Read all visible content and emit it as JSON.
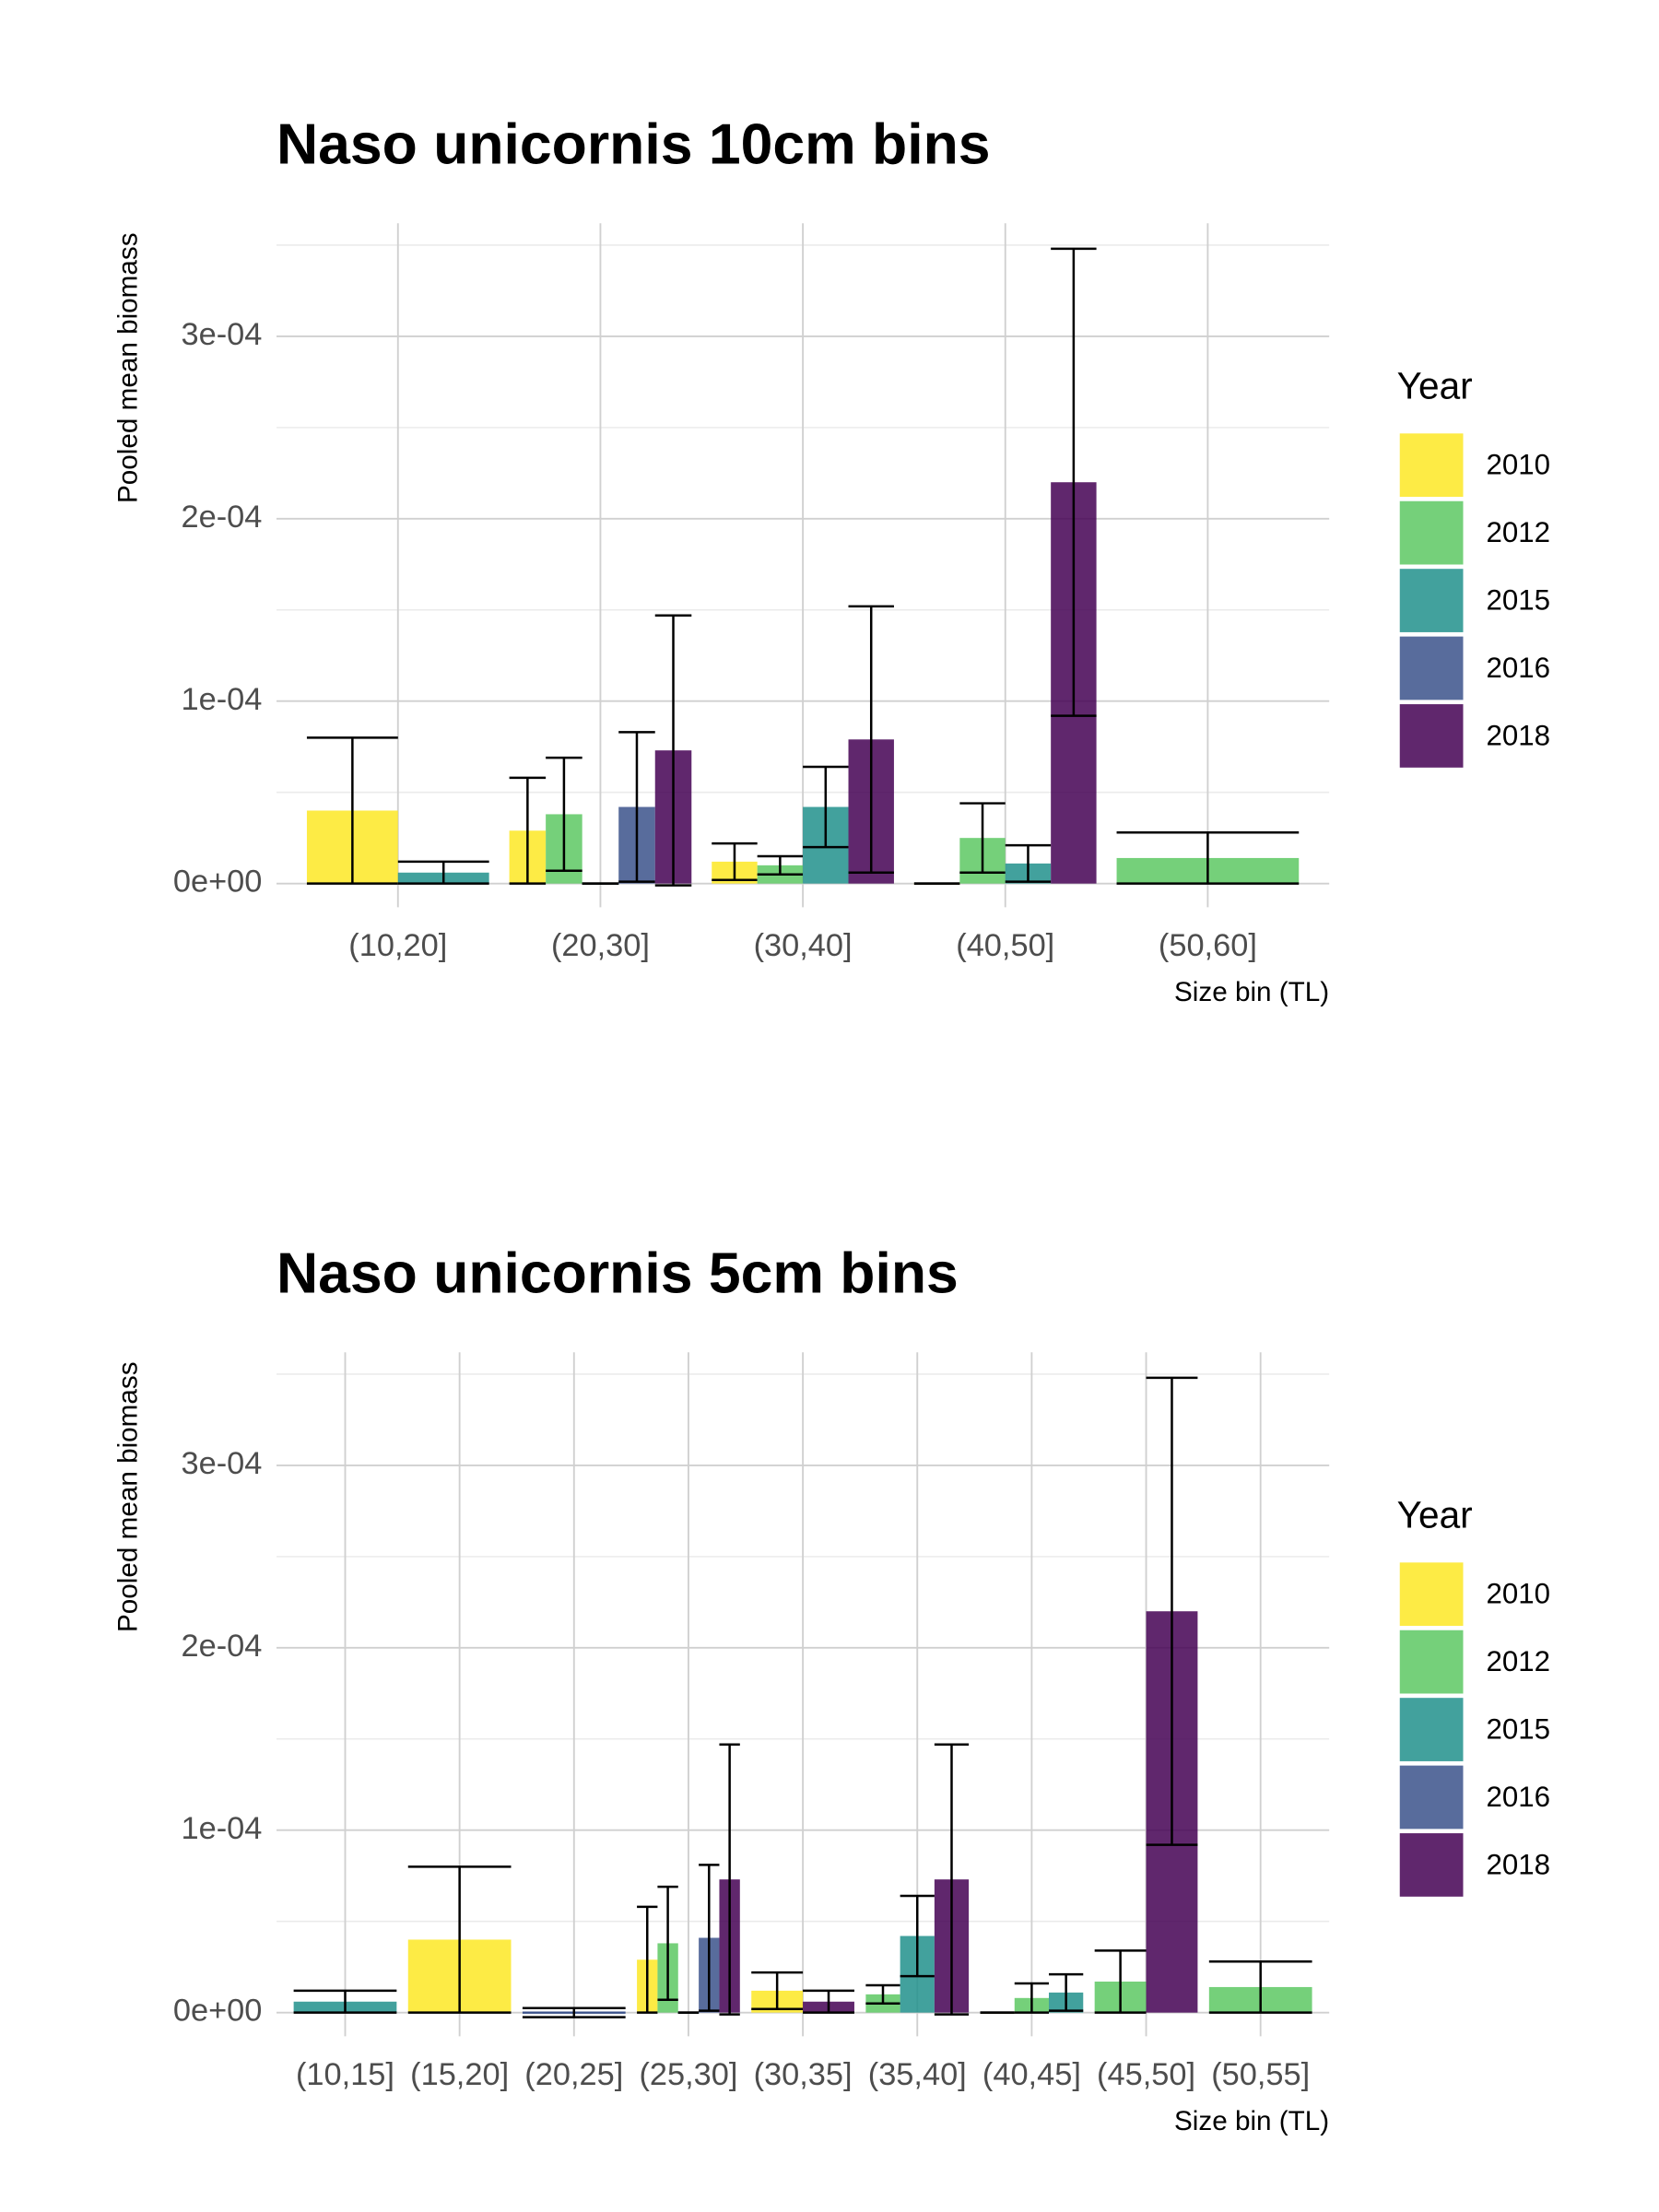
{
  "chart_data": [
    {
      "type": "bar",
      "title": "Naso unicornis 10cm bins",
      "x_label": "Size bin (TL)",
      "y_label": "Pooled mean biomass",
      "categories": [
        "(10,20]",
        "(20,30]",
        "(30,40]",
        "(40,50]",
        "(50,60]"
      ],
      "series": [
        {
          "name": "2010",
          "color": "#FDE725",
          "values": [
            4e-05,
            2.9e-05,
            1.2e-05,
            0,
            null
          ],
          "errors": [
            4e-05,
            2.9e-05,
            1e-05,
            0,
            null
          ]
        },
        {
          "name": "2012",
          "color": "#5DC863",
          "values": [
            null,
            3.8e-05,
            1e-05,
            2.5e-05,
            1.4e-05
          ],
          "errors": [
            null,
            3.1e-05,
            5e-06,
            1.9e-05,
            1.4e-05
          ]
        },
        {
          "name": "2015",
          "color": "#21908C",
          "values": [
            6e-06,
            0,
            4.2e-05,
            1.1e-05,
            null
          ],
          "errors": [
            6e-06,
            0,
            2.2e-05,
            1e-05,
            null
          ]
        },
        {
          "name": "2016",
          "color": "#3B528B",
          "values": [
            null,
            4.2e-05,
            null,
            null,
            null
          ],
          "errors": [
            null,
            4.1e-05,
            null,
            null,
            null
          ]
        },
        {
          "name": "2018",
          "color": "#440154",
          "values": [
            null,
            7.3e-05,
            7.9e-05,
            0.00022,
            null
          ],
          "errors": [
            null,
            7.4e-05,
            7.3e-05,
            0.000128,
            null
          ]
        }
      ],
      "ylim": [
        -1.3e-05,
        0.000362
      ],
      "yticks": [
        {
          "value": 0,
          "label": "0e+00"
        },
        {
          "value": 0.0001,
          "label": "1e-04"
        },
        {
          "value": 0.0002,
          "label": "2e-04"
        },
        {
          "value": 0.0003,
          "label": "3e-04"
        }
      ],
      "minor_yticks": [
        5e-05,
        0.00015,
        0.00025,
        0.00035
      ],
      "grid": true,
      "legend_title": "Year",
      "legend_position": "right"
    },
    {
      "type": "bar",
      "title": "Naso unicornis 5cm bins",
      "x_label": "Size bin (TL)",
      "y_label": "Pooled mean biomass",
      "categories": [
        "(10,15]",
        "(15,20]",
        "(20,25]",
        "(25,30]",
        "(30,35]",
        "(35,40]",
        "(40,45]",
        "(45,50]",
        "(50,55]"
      ],
      "series": [
        {
          "name": "2010",
          "color": "#FDE725",
          "values": [
            null,
            4e-05,
            null,
            2.9e-05,
            1.2e-05,
            null,
            0,
            null,
            null
          ],
          "errors": [
            null,
            4e-05,
            null,
            2.9e-05,
            1e-05,
            null,
            0,
            null,
            null
          ]
        },
        {
          "name": "2012",
          "color": "#5DC863",
          "values": [
            null,
            null,
            null,
            3.8e-05,
            null,
            1e-05,
            8e-06,
            1.7e-05,
            1.4e-05
          ],
          "errors": [
            null,
            null,
            null,
            3.1e-05,
            null,
            5e-06,
            8e-06,
            1.7e-05,
            1.4e-05
          ]
        },
        {
          "name": "2015",
          "color": "#21908C",
          "values": [
            6e-06,
            null,
            null,
            0,
            null,
            4.2e-05,
            1.1e-05,
            null,
            null
          ],
          "errors": [
            6e-06,
            null,
            null,
            0,
            null,
            2.2e-05,
            1e-05,
            null,
            null
          ]
        },
        {
          "name": "2016",
          "color": "#3B528B",
          "values": [
            null,
            null,
            0,
            4.1e-05,
            null,
            null,
            null,
            null,
            null
          ],
          "errors": [
            null,
            null,
            2.5e-06,
            4e-05,
            null,
            null,
            null,
            null,
            null
          ]
        },
        {
          "name": "2018",
          "color": "#440154",
          "values": [
            null,
            null,
            null,
            7.3e-05,
            6e-06,
            7.3e-05,
            null,
            0.00022,
            null
          ],
          "errors": [
            null,
            null,
            null,
            7.4e-05,
            6e-06,
            7.4e-05,
            null,
            0.000128,
            null
          ]
        }
      ],
      "ylim": [
        -1.3e-05,
        0.000362
      ],
      "yticks": [
        {
          "value": 0,
          "label": "0e+00"
        },
        {
          "value": 0.0001,
          "label": "1e-04"
        },
        {
          "value": 0.0002,
          "label": "2e-04"
        },
        {
          "value": 0.0003,
          "label": "3e-04"
        }
      ],
      "minor_yticks": [
        5e-05,
        0.00015,
        0.00025,
        0.00035
      ],
      "grid": true,
      "legend_title": "Year",
      "legend_position": "right"
    }
  ]
}
